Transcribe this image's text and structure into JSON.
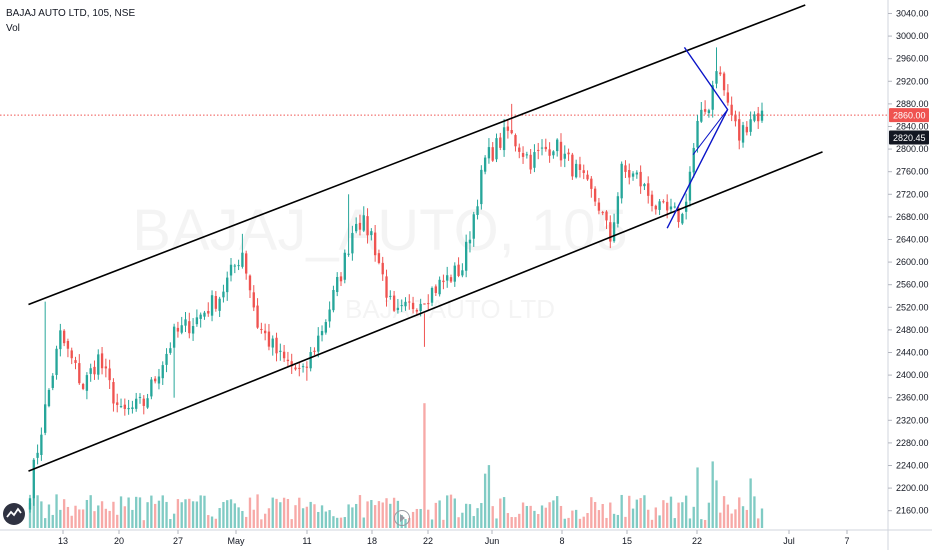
{
  "legend": {
    "symbol": "BAJAJ AUTO LTD, 105, NSE",
    "volume_label": "Vol"
  },
  "watermark": {
    "ticker": "BAJAJ_AUTO, 105",
    "name": "BAJAJ AUTO LTD"
  },
  "price_tags": {
    "last": "2860.00",
    "previous": "2820.45"
  },
  "colors": {
    "up": "#26a69a",
    "down": "#ef5350",
    "up_volume": "#80cbc4",
    "down_volume": "#f7a9a7",
    "channel": "#000000",
    "triangle": "#0a14c8",
    "last_price_line": "#ef5350",
    "prev_tag_bg": "#131722"
  },
  "chart_data": {
    "type": "candlestick",
    "x_ticks": [
      "13",
      "20",
      "27",
      "May",
      "11",
      "18",
      "22",
      "Jun",
      "8",
      "15",
      "22",
      "Jul",
      "7"
    ],
    "y_ticks": [
      2160,
      2200,
      2240,
      2280,
      2320,
      2360,
      2400,
      2440,
      2480,
      2520,
      2560,
      2600,
      2640,
      2680,
      2720,
      2760,
      2800,
      2840,
      2880,
      2920,
      2960,
      3000,
      3040
    ],
    "ylim": [
      2140,
      3055
    ],
    "last_price": 2860.0,
    "previous_price": 2820.45,
    "anchors": [
      {
        "bar": 0,
        "close": 2200
      },
      {
        "bar": 4,
        "close": 2340
      },
      {
        "bar": 8,
        "close": 2470
      },
      {
        "bar": 14,
        "close": 2380
      },
      {
        "bar": 18,
        "close": 2430
      },
      {
        "bar": 24,
        "close": 2330
      },
      {
        "bar": 30,
        "close": 2350
      },
      {
        "bar": 38,
        "close": 2470
      },
      {
        "bar": 44,
        "close": 2500
      },
      {
        "bar": 50,
        "close": 2540
      },
      {
        "bar": 56,
        "close": 2620
      },
      {
        "bar": 60,
        "close": 2490
      },
      {
        "bar": 66,
        "close": 2430
      },
      {
        "bar": 72,
        "close": 2400
      },
      {
        "bar": 78,
        "close": 2500
      },
      {
        "bar": 82,
        "close": 2580
      },
      {
        "bar": 86,
        "close": 2680
      },
      {
        "bar": 90,
        "close": 2650
      },
      {
        "bar": 96,
        "close": 2500
      },
      {
        "bar": 102,
        "close": 2530
      },
      {
        "bar": 108,
        "close": 2560
      },
      {
        "bar": 114,
        "close": 2590
      },
      {
        "bar": 120,
        "close": 2780
      },
      {
        "bar": 126,
        "close": 2830
      },
      {
        "bar": 132,
        "close": 2780
      },
      {
        "bar": 138,
        "close": 2810
      },
      {
        "bar": 144,
        "close": 2760
      },
      {
        "bar": 150,
        "close": 2700
      },
      {
        "bar": 153,
        "close": 2640
      },
      {
        "bar": 156,
        "close": 2760
      },
      {
        "bar": 160,
        "close": 2750
      },
      {
        "bar": 166,
        "close": 2690
      },
      {
        "bar": 172,
        "close": 2680
      },
      {
        "bar": 176,
        "close": 2840
      },
      {
        "bar": 179,
        "close": 2880
      },
      {
        "bar": 181,
        "close": 2950
      },
      {
        "bar": 184,
        "close": 2880
      },
      {
        "bar": 187,
        "close": 2820
      },
      {
        "bar": 190,
        "close": 2860
      },
      {
        "bar": 193,
        "close": 2860
      }
    ],
    "spikes": [
      {
        "bar": 4,
        "high": 2530
      },
      {
        "bar": 56,
        "high": 2650
      },
      {
        "bar": 84,
        "high": 2720
      },
      {
        "bar": 104,
        "high": 2450
      },
      {
        "bar": 127,
        "high": 2880
      },
      {
        "bar": 181,
        "high": 2980
      },
      {
        "bar": 38,
        "low": 2360
      },
      {
        "bar": 73,
        "low": 2390
      }
    ],
    "volume_spike_bar": 104,
    "channel": {
      "upper": [
        {
          "date": "Apr 9",
          "price": 2525
        },
        {
          "date": "Jul 8",
          "price": 3055
        }
      ],
      "lower": [
        {
          "date": "Apr 9",
          "price": 2230
        },
        {
          "date": "Jul 10",
          "price": 2795
        }
      ]
    },
    "triangle": {
      "apex": {
        "date": "Jun 29",
        "price": 2870
      },
      "top": {
        "date": "Jun 24",
        "price": 2980
      },
      "bottom": {
        "date": "Jun 22",
        "price": 2660
      },
      "mid": {
        "date": "Jun 25",
        "price": 2790
      }
    }
  }
}
